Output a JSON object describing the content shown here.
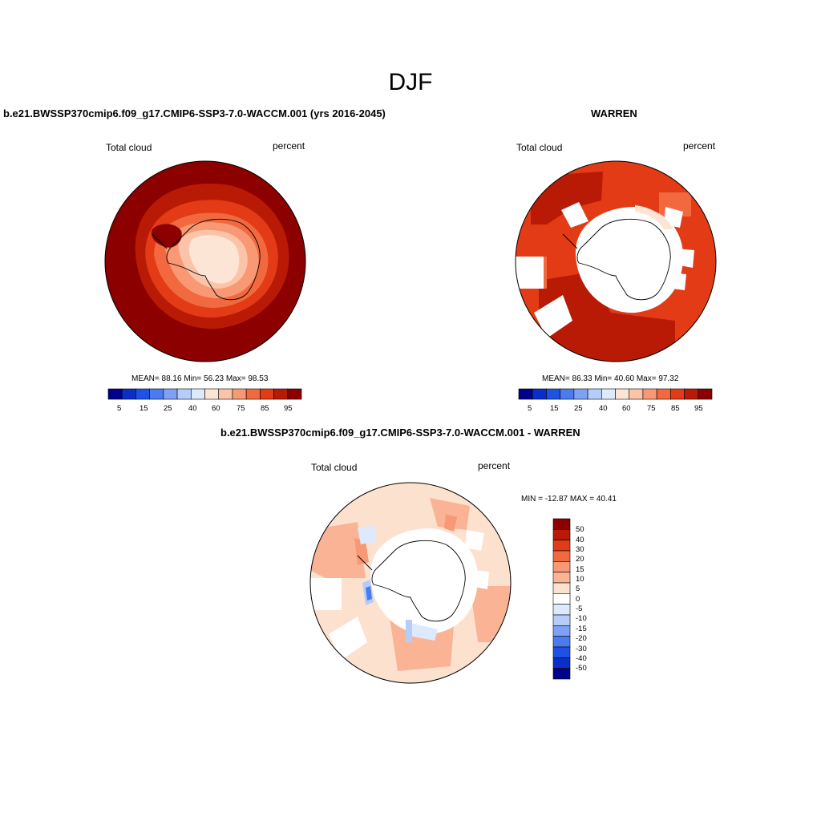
{
  "main_title": "DJF",
  "panels": [
    {
      "title": "b.e21.BWSSP370cmip6.f09_g17.CMIP6-SSP3-7.0-WACCM.001 (yrs 2016-2045)",
      "variable": "Total cloud",
      "units": "percent",
      "stats": "MEAN=  88.16  Min=  56.23  Max=  98.53",
      "colorbar_ticks": [
        "5",
        "15",
        "25",
        "40",
        "60",
        "75",
        "85",
        "95"
      ]
    },
    {
      "title": "WARREN",
      "variable": "Total cloud",
      "units": "percent",
      "stats": "MEAN=  86.33  Min=  40.60  Max=  97.32",
      "colorbar_ticks": [
        "5",
        "15",
        "25",
        "40",
        "60",
        "75",
        "85",
        "95"
      ]
    },
    {
      "title": "b.e21.BWSSP370cmip6.f09_g17.CMIP6-SSP3-7.0-WACCM.001 - WARREN",
      "variable": "Total cloud",
      "units": "percent",
      "stats": "MIN = -12.87 MAX =  40.41",
      "colorbar_ticks": [
        "50",
        "40",
        "30",
        "20",
        "15",
        "10",
        "5",
        "0",
        "-5",
        "-10",
        "-15",
        "-20",
        "-30",
        "-40",
        "-50"
      ]
    }
  ],
  "colors": {
    "scale_abs": [
      "#00008c",
      "#0a2fc8",
      "#1e52e6",
      "#4a7bef",
      "#7ea0f5",
      "#b4cdfa",
      "#dde9fc",
      "#fde5d6",
      "#fbc3a8",
      "#f89874",
      "#f2693f",
      "#e23b15",
      "#b81a06",
      "#8c0000"
    ],
    "scale_diff": [
      "#8c0000",
      "#b81a06",
      "#e23b15",
      "#f2693f",
      "#f89874",
      "#fbb396",
      "#fde1cf",
      "#ffffff",
      "#dde9fc",
      "#b4cdfa",
      "#7ea0f5",
      "#4a7bef",
      "#1e52e6",
      "#0a2fc8",
      "#00008c"
    ]
  }
}
